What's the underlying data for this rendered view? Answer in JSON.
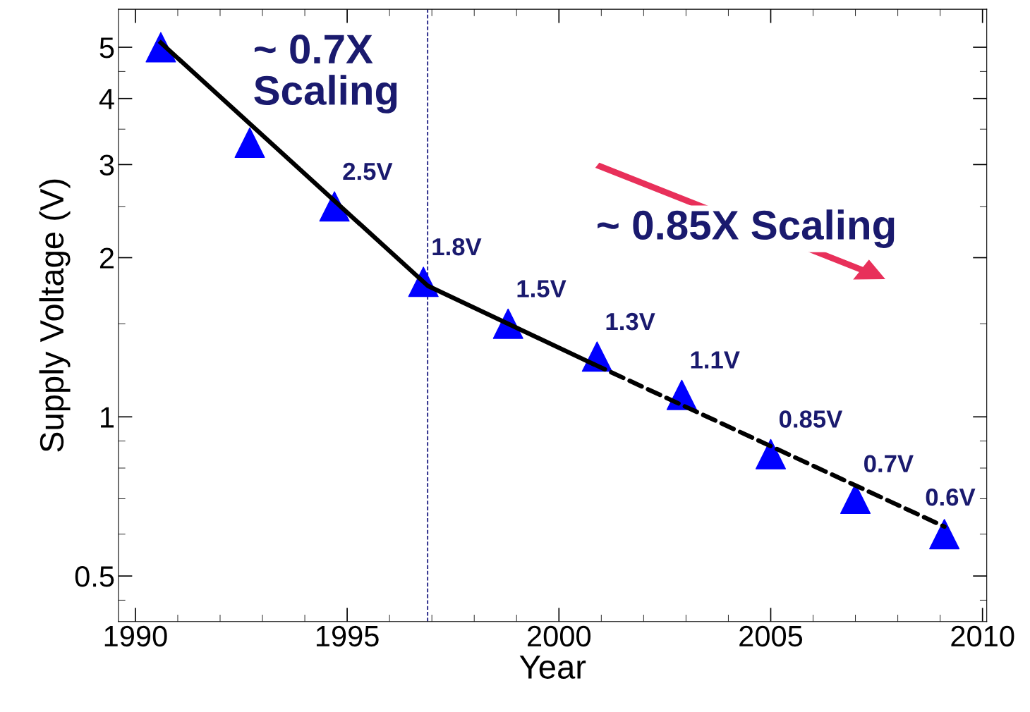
{
  "chart_data": {
    "type": "scatter",
    "xlabel": "Year",
    "ylabel": "Supply Voltage (V)",
    "log": "y",
    "xlim": [
      1989.6,
      2010.1
    ],
    "xticks": [
      1990,
      1995,
      2000,
      2005,
      2010
    ],
    "ylim": [
      0.41,
      5.9
    ],
    "yticks": [
      0.5,
      1,
      2,
      3,
      4,
      5
    ],
    "grid": false,
    "series": [
      {
        "color": "#0000ff",
        "marker": "triangle",
        "x": [
          1990.6,
          1992.7,
          1994.7,
          1996.8,
          1998.8,
          2000.9,
          2002.9,
          2005.0,
          2007.0,
          2009.1
        ],
        "values": [
          5,
          3.3,
          2.5,
          1.8,
          1.5,
          1.3,
          1.1,
          0.85,
          0.7,
          0.6
        ],
        "value_labels": [
          null,
          null,
          "2.5V",
          "1.8V",
          "1.5V",
          "1.3V",
          "1.1V",
          "0.85V",
          "0.7V",
          "0.6V"
        ]
      },
      {
        "type": "line",
        "color": "#000000",
        "line_style": "solid",
        "x": [
          1990.6,
          1996.9,
          2000.8
        ],
        "values": [
          5.1,
          1.77,
          1.26
        ]
      },
      {
        "type": "line",
        "color": "#000000",
        "line_style": "dashed",
        "x": [
          2000.8,
          2009.1
        ],
        "values": [
          1.26,
          0.62
        ]
      }
    ],
    "ref_lines": [
      {
        "axis": "x",
        "value": 1996.9,
        "label": null,
        "color": "#1a1a80",
        "line_style": "dashed"
      }
    ],
    "annotations": [
      "~ 0.7X\nScaling",
      "~ 0.85X Scaling"
    ]
  }
}
